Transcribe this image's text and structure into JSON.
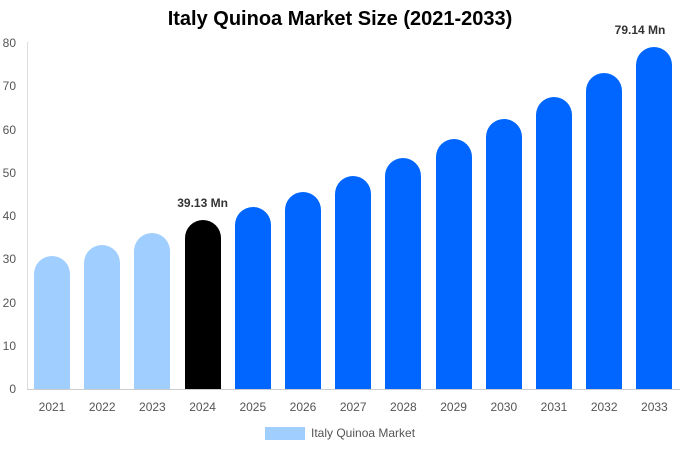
{
  "chart_data": {
    "type": "bar",
    "title": "Italy Quinoa Market Size (2021-2033)",
    "xlabel": "",
    "ylabel": "",
    "ylim": [
      0,
      80
    ],
    "yticks": [
      0,
      10,
      20,
      30,
      40,
      50,
      60,
      70,
      80
    ],
    "grid": false,
    "legend_position": "bottom",
    "categories": [
      "2021",
      "2022",
      "2023",
      "2024",
      "2025",
      "2026",
      "2027",
      "2028",
      "2029",
      "2030",
      "2031",
      "2032",
      "2033"
    ],
    "series": [
      {
        "name": "Italy Quinoa Market",
        "values": [
          30.7,
          33.3,
          36.0,
          39.13,
          42.1,
          45.5,
          49.2,
          53.4,
          57.8,
          62.4,
          67.5,
          73.1,
          79.14
        ]
      }
    ],
    "annotations": [
      {
        "category": "2024",
        "text": "39.13 Mn"
      },
      {
        "category": "2033",
        "text": "79.14 Mn"
      }
    ],
    "colors": {
      "historical": "#a0cfff",
      "current": "#000000",
      "forecast": "#0066ff"
    }
  }
}
